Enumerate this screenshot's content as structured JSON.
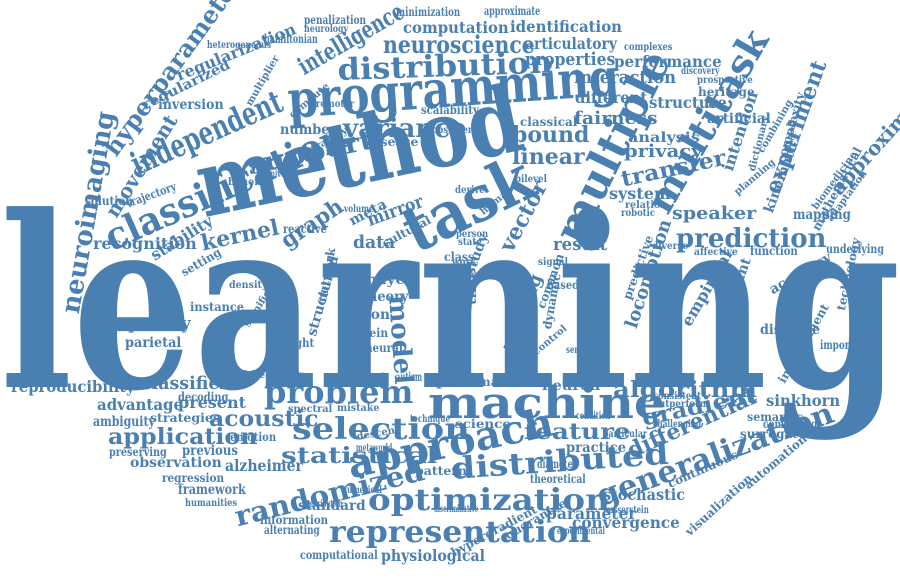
{
  "palette": {
    "word_color": "#4a7fb2",
    "background": "#ffffff"
  },
  "words": [
    {
      "id": "learning",
      "text": "learning"
    },
    {
      "id": "method",
      "text": "method"
    },
    {
      "id": "task",
      "text": "task"
    },
    {
      "id": "programming",
      "text": "programming"
    },
    {
      "id": "machine",
      "text": "machine"
    },
    {
      "id": "multiple",
      "text": "multiple"
    },
    {
      "id": "classification",
      "text": "classification"
    },
    {
      "id": "approach",
      "text": "approach"
    },
    {
      "id": "multitask",
      "text": "multitask"
    },
    {
      "id": "independent",
      "text": "independent"
    },
    {
      "id": "distribution",
      "text": "distribution"
    },
    {
      "id": "problem",
      "text": "problem"
    },
    {
      "id": "selection",
      "text": "selection"
    },
    {
      "id": "optimization",
      "text": "optimization"
    },
    {
      "id": "representation",
      "text": "representation"
    },
    {
      "id": "generalization",
      "text": "generalization"
    },
    {
      "id": "distributed",
      "text": "distributed"
    },
    {
      "id": "randomized",
      "text": "randomized"
    },
    {
      "id": "neuroimaging",
      "text": "neuroimaging"
    },
    {
      "id": "prediction",
      "text": "prediction"
    },
    {
      "id": "variance",
      "text": "variance"
    },
    {
      "id": "support",
      "text": "support"
    },
    {
      "id": "vector",
      "text": "vector"
    },
    {
      "id": "model",
      "text": "model"
    },
    {
      "id": "hyperparameter",
      "text": "hyperparameter"
    },
    {
      "id": "neuroscience",
      "text": "neuroscience"
    },
    {
      "id": "intelligence",
      "text": "intelligence"
    },
    {
      "id": "algorithm",
      "text": "algorithm"
    },
    {
      "id": "feature",
      "text": "feature"
    },
    {
      "id": "statistical",
      "text": "statistical"
    },
    {
      "id": "application",
      "text": "application"
    },
    {
      "id": "acoustic",
      "text": "acoustic"
    },
    {
      "id": "gradient",
      "text": "gradient"
    },
    {
      "id": "differential",
      "text": "differential"
    },
    {
      "id": "kernel",
      "text": "kernel"
    },
    {
      "id": "graph",
      "text": "graph"
    },
    {
      "id": "bound",
      "text": "bound"
    },
    {
      "id": "linear",
      "text": "linear"
    },
    {
      "id": "transfer",
      "text": "transfer"
    },
    {
      "id": "fairness",
      "text": "fairness"
    },
    {
      "id": "privacy",
      "text": "privacy"
    },
    {
      "id": "experiment",
      "text": "experiment"
    },
    {
      "id": "approximation",
      "text": "approximation"
    },
    {
      "id": "speaker",
      "text": "speaker"
    },
    {
      "id": "movement",
      "text": "movement"
    },
    {
      "id": "regularization",
      "text": "regularization"
    },
    {
      "id": "computation",
      "text": "computation"
    },
    {
      "id": "identification",
      "text": "identification"
    },
    {
      "id": "articulatory",
      "text": "articulatory"
    },
    {
      "id": "performance",
      "text": "performance"
    },
    {
      "id": "properties",
      "text": "properties"
    },
    {
      "id": "interaction",
      "text": "interaction"
    },
    {
      "id": "different",
      "text": "different"
    },
    {
      "id": "structure",
      "text": "structure"
    },
    {
      "id": "analysis",
      "text": "analysis"
    },
    {
      "id": "classical",
      "text": "classical"
    },
    {
      "id": "artificial",
      "text": "artificial"
    },
    {
      "id": "heritage",
      "text": "heritage"
    },
    {
      "id": "intention",
      "text": "intention"
    },
    {
      "id": "regularized",
      "text": "regularized"
    },
    {
      "id": "inversion",
      "text": "inversion"
    },
    {
      "id": "number",
      "text": "number"
    },
    {
      "id": "recognition",
      "text": "recognition"
    },
    {
      "id": "stability",
      "text": "stability"
    },
    {
      "id": "setting",
      "text": "setting"
    },
    {
      "id": "data",
      "text": "data"
    },
    {
      "id": "meta",
      "text": "meta"
    },
    {
      "id": "mirror",
      "text": "mirror"
    },
    {
      "id": "result",
      "text": "result"
    },
    {
      "id": "system",
      "text": "system"
    },
    {
      "id": "sparsity",
      "text": "sparsity"
    },
    {
      "id": "parietal",
      "text": "parietal"
    },
    {
      "id": "instance",
      "text": "instance"
    },
    {
      "id": "reproducibility",
      "text": "reproducibility"
    },
    {
      "id": "classifier",
      "text": "classifier"
    },
    {
      "id": "advantage",
      "text": "advantage"
    },
    {
      "id": "present",
      "text": "present"
    },
    {
      "id": "ambiguity",
      "text": "ambiguity"
    },
    {
      "id": "strategies",
      "text": "strategies"
    },
    {
      "id": "emotion",
      "text": "emotion"
    },
    {
      "id": "previous",
      "text": "previous"
    },
    {
      "id": "observation",
      "text": "observation"
    },
    {
      "id": "regression",
      "text": "regression"
    },
    {
      "id": "alzheimer",
      "text": "alzheimer"
    },
    {
      "id": "framework",
      "text": "framework"
    },
    {
      "id": "standard",
      "text": "standard"
    },
    {
      "id": "physiological",
      "text": "physiological"
    },
    {
      "id": "information",
      "text": "information"
    },
    {
      "id": "computational",
      "text": "computational"
    },
    {
      "id": "convergence",
      "text": "convergence"
    },
    {
      "id": "parameter",
      "text": "parameter"
    },
    {
      "id": "stochastic",
      "text": "stochastic"
    },
    {
      "id": "sinkhorn",
      "text": "sinkhorn"
    },
    {
      "id": "empirical",
      "text": "empirical"
    },
    {
      "id": "locomotion",
      "text": "locomotion"
    },
    {
      "id": "training",
      "text": "training"
    },
    {
      "id": "dataset",
      "text": "dataset"
    },
    {
      "id": "neuron",
      "text": "neuron"
    },
    {
      "id": "sparse",
      "text": "sparse"
    },
    {
      "id": "matrix",
      "text": "matrix"
    },
    {
      "id": "pattern",
      "text": "pattern"
    },
    {
      "id": "science",
      "text": "science"
    },
    {
      "id": "practice",
      "text": "practice"
    },
    {
      "id": "distance",
      "text": "distance"
    },
    {
      "id": "accuracy",
      "text": "accuracy"
    },
    {
      "id": "mapping",
      "text": "mapping"
    },
    {
      "id": "kinematic",
      "text": "kinematic"
    },
    {
      "id": "complexity",
      "text": "complexity"
    },
    {
      "id": "semantic",
      "text": "semantic"
    },
    {
      "id": "surrogate",
      "text": "surrogate"
    },
    {
      "id": "continuous",
      "text": "continuous"
    },
    {
      "id": "visualization",
      "text": "visualization"
    },
    {
      "id": "automation",
      "text": "automation"
    },
    {
      "id": "function",
      "text": "function"
    },
    {
      "id": "underlying",
      "text": "underlying"
    },
    {
      "id": "important",
      "text": "important"
    },
    {
      "id": "technology",
      "text": "technology"
    },
    {
      "id": "improvement",
      "text": "improvement"
    },
    {
      "id": "computing",
      "text": "computing"
    },
    {
      "id": "theoretical",
      "text": "theoretical"
    },
    {
      "id": "preserving",
      "text": "preserving"
    },
    {
      "id": "decoding",
      "text": "decoding"
    },
    {
      "id": "humanities",
      "text": "humanities"
    },
    {
      "id": "spectral",
      "text": "spectral"
    },
    {
      "id": "mistake",
      "text": "mistake"
    },
    {
      "id": "respect",
      "text": "respect"
    },
    {
      "id": "descent",
      "text": "descent"
    },
    {
      "id": "penalization",
      "text": "penalization"
    },
    {
      "id": "minimization",
      "text": "minimization"
    },
    {
      "id": "approximate",
      "text": "approximate"
    },
    {
      "id": "neurology",
      "text": "neurology"
    },
    {
      "id": "hamiltonian",
      "text": "hamiltonian"
    },
    {
      "id": "heterogeneous",
      "text": "heterogeneous"
    },
    {
      "id": "complexes",
      "text": "complexes"
    },
    {
      "id": "discovery",
      "text": "discovery"
    },
    {
      "id": "prospective",
      "text": "prospective"
    },
    {
      "id": "dictionary",
      "text": "dictionary"
    },
    {
      "id": "combining",
      "text": "combining"
    },
    {
      "id": "biomedicine",
      "text": "biomedicine"
    },
    {
      "id": "mathematical",
      "text": "mathematical"
    },
    {
      "id": "adaptation",
      "text": "adaptation"
    },
    {
      "id": "planning",
      "text": "planning"
    },
    {
      "id": "relation",
      "text": "relation"
    },
    {
      "id": "robotic",
      "text": "robotic"
    },
    {
      "id": "diverse",
      "text": "diverse"
    },
    {
      "id": "affective",
      "text": "affective"
    },
    {
      "id": "bilevel",
      "text": "bilevel"
    },
    {
      "id": "signal",
      "text": "signal"
    },
    {
      "id": "based",
      "text": "based"
    },
    {
      "id": "common",
      "text": "common"
    },
    {
      "id": "constraint",
      "text": "constraint"
    },
    {
      "id": "predictive",
      "text": "predictive"
    },
    {
      "id": "solution",
      "text": "solution"
    },
    {
      "id": "trajectory",
      "text": "trajectory"
    },
    {
      "id": "benefit",
      "text": "benefit"
    },
    {
      "id": "universal",
      "text": "universal"
    },
    {
      "id": "multiplier",
      "text": "multiplier"
    },
    {
      "id": "premotor",
      "text": "premotor"
    },
    {
      "id": "compute",
      "text": "compute"
    },
    {
      "id": "scalability",
      "text": "scalability"
    },
    {
      "id": "observer",
      "text": "observer"
    },
    {
      "id": "disease",
      "text": "disease"
    },
    {
      "id": "strategy",
      "text": "strategy"
    },
    {
      "id": "reactive",
      "text": "reactive"
    },
    {
      "id": "density",
      "text": "density"
    },
    {
      "id": "cultural",
      "text": "cultural"
    },
    {
      "id": "volume",
      "text": "volume"
    },
    {
      "id": "derive",
      "text": "derive"
    },
    {
      "id": "state",
      "text": "state"
    },
    {
      "id": "class",
      "text": "class"
    },
    {
      "id": "work",
      "text": "work"
    },
    {
      "id": "bayes",
      "text": "bayes"
    },
    {
      "id": "theory",
      "text": "theory"
    },
    {
      "id": "structured",
      "text": "structured"
    },
    {
      "id": "action",
      "text": "action"
    },
    {
      "id": "protein",
      "text": "protein"
    },
    {
      "id": "weight",
      "text": "weight"
    },
    {
      "id": "neural",
      "text": "neural"
    },
    {
      "id": "network",
      "text": "network"
    },
    {
      "id": "significant",
      "text": "significant"
    },
    {
      "id": "available",
      "text": "available"
    },
    {
      "id": "mobility",
      "text": "mobility"
    },
    {
      "id": "autism",
      "text": "autism"
    },
    {
      "id": "numerical",
      "text": "numerical"
    },
    {
      "id": "alternating",
      "text": "alternating"
    },
    {
      "id": "discriminative",
      "text": "discriminative"
    },
    {
      "id": "hypergradient",
      "text": "hypergradient"
    },
    {
      "id": "guarantee",
      "text": "guarantee"
    },
    {
      "id": "wasserstein",
      "text": "wasserstein"
    },
    {
      "id": "experimental",
      "text": "experimental"
    },
    {
      "id": "diameter",
      "text": "diameter"
    },
    {
      "id": "particular",
      "text": "particular"
    },
    {
      "id": "consistent",
      "text": "consistent"
    },
    {
      "id": "outperform",
      "text": "outperform"
    },
    {
      "id": "condition",
      "text": "condition"
    },
    {
      "id": "challenging",
      "text": "challenging"
    },
    {
      "id": "contribution",
      "text": "contribution"
    },
    {
      "id": "metaworld",
      "text": "metaworld"
    },
    {
      "id": "study",
      "text": "study"
    },
    {
      "id": "time",
      "text": "time"
    },
    {
      "id": "dynamic",
      "text": "dynamic"
    },
    {
      "id": "technique",
      "text": "technique"
    },
    {
      "id": "sensor",
      "text": "sensor"
    },
    {
      "id": "control",
      "text": "control"
    },
    {
      "id": "human",
      "text": "human"
    },
    {
      "id": "person",
      "text": "person"
    }
  ]
}
